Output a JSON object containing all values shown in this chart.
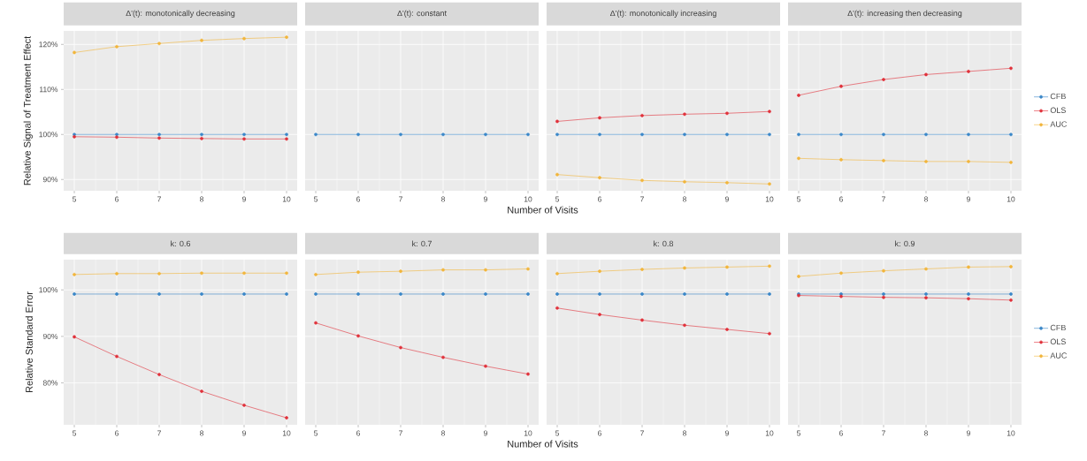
{
  "chart_data": [
    {
      "type": "line",
      "title": "Δ'(t): monotonically decreasing",
      "ylabel": "Relative Signal of Treatment Effect",
      "x": [
        5,
        6,
        7,
        8,
        9,
        10
      ],
      "xlim": [
        4.75,
        10.25
      ],
      "xticks": [
        5,
        6,
        7,
        8,
        9,
        10
      ],
      "ylim": [
        87.5,
        123
      ],
      "yticks": [
        {
          "value": 90,
          "label": "90%"
        },
        {
          "value": 100,
          "label": "100%"
        },
        {
          "value": 110,
          "label": "110%"
        },
        {
          "value": 120,
          "label": "120%"
        }
      ],
      "grid": true,
      "marker": "circle",
      "series": [
        {
          "color": "#3a87c8",
          "values": [
            100,
            100,
            100,
            100,
            100,
            100
          ]
        },
        {
          "color": "#e0313a",
          "values": [
            99.5,
            99.4,
            99.2,
            99.1,
            99.0,
            99.0
          ]
        },
        {
          "color": "#f2b53b",
          "values": [
            118.2,
            119.5,
            120.2,
            120.9,
            121.3,
            121.6
          ]
        }
      ]
    },
    {
      "type": "line",
      "title": "Δ'(t): constant",
      "xlabel": "Number of Visits",
      "x": [
        5,
        6,
        7,
        8,
        9,
        10
      ],
      "xlim": [
        4.75,
        10.25
      ],
      "xticks": [
        5,
        6,
        7,
        8,
        9,
        10
      ],
      "ylim": [
        87.5,
        123
      ],
      "yticks": [
        {
          "value": 90,
          "label": null
        },
        {
          "value": 100,
          "label": null
        },
        {
          "value": 110,
          "label": null
        },
        {
          "value": 120,
          "label": null
        }
      ],
      "grid": true,
      "marker": "circle",
      "tick_labels": "x",
      "series": [
        {
          "color": "#3a87c8",
          "values": [
            100,
            100,
            100,
            100,
            100,
            100
          ]
        }
      ]
    },
    {
      "type": "line",
      "title": "Δ'(t): monotonically increasing",
      "x": [
        5,
        6,
        7,
        8,
        9,
        10
      ],
      "xlim": [
        4.75,
        10.25
      ],
      "xticks": [
        5,
        6,
        7,
        8,
        9,
        10
      ],
      "ylim": [
        87.5,
        123
      ],
      "yticks": [
        {
          "value": 90,
          "label": null
        },
        {
          "value": 100,
          "label": null
        },
        {
          "value": 110,
          "label": null
        },
        {
          "value": 120,
          "label": null
        }
      ],
      "grid": true,
      "marker": "circle",
      "tick_labels": "x",
      "series": [
        {
          "color": "#3a87c8",
          "values": [
            100,
            100,
            100,
            100,
            100,
            100
          ]
        },
        {
          "color": "#e0313a",
          "values": [
            102.9,
            103.7,
            104.2,
            104.5,
            104.7,
            105.1
          ]
        },
        {
          "color": "#f2b53b",
          "values": [
            91.1,
            90.4,
            89.8,
            89.5,
            89.3,
            89.0
          ]
        }
      ]
    },
    {
      "type": "line",
      "title": "Δ'(t): increasing then decreasing",
      "x": [
        5,
        6,
        7,
        8,
        9,
        10
      ],
      "xlim": [
        4.75,
        10.25
      ],
      "xticks": [
        5,
        6,
        7,
        8,
        9,
        10
      ],
      "ylim": [
        87.5,
        123
      ],
      "yticks": [
        {
          "value": 90,
          "label": null
        },
        {
          "value": 100,
          "label": null
        },
        {
          "value": 110,
          "label": null
        },
        {
          "value": 120,
          "label": null
        }
      ],
      "grid": true,
      "marker": "circle",
      "legend": "right",
      "tick_labels": "x",
      "series": [
        {
          "name": "CFB",
          "color": "#3a87c8",
          "values": [
            100,
            100,
            100,
            100,
            100,
            100
          ]
        },
        {
          "name": "OLS",
          "color": "#e0313a",
          "values": [
            108.7,
            110.7,
            112.2,
            113.3,
            114.0,
            114.7
          ]
        },
        {
          "name": "AUC",
          "color": "#f2b53b",
          "values": [
            94.7,
            94.4,
            94.2,
            94.0,
            94.0,
            93.8
          ]
        }
      ]
    },
    {
      "type": "line",
      "title": "k: 0.6",
      "ylabel": "Relative Standard Error",
      "x": [
        5,
        6,
        7,
        8,
        9,
        10
      ],
      "xlim": [
        4.75,
        10.25
      ],
      "xticks": [
        5,
        6,
        7,
        8,
        9,
        10
      ],
      "ylim": [
        71,
        106.5
      ],
      "yticks": [
        {
          "value": 80,
          "label": "80%"
        },
        {
          "value": 90,
          "label": "90%"
        },
        {
          "value": 100,
          "label": "100%"
        }
      ],
      "grid": true,
      "marker": "circle",
      "series": [
        {
          "color": "#3a87c8",
          "values": [
            99.1,
            99.1,
            99.1,
            99.1,
            99.1,
            99.1
          ]
        },
        {
          "color": "#e0313a",
          "values": [
            89.9,
            85.7,
            81.8,
            78.2,
            75.2,
            72.5
          ]
        },
        {
          "color": "#f2b53b",
          "values": [
            103.3,
            103.5,
            103.5,
            103.6,
            103.6,
            103.6
          ]
        }
      ]
    },
    {
      "type": "line",
      "title": "k: 0.7",
      "xlabel": "Number of Visits",
      "x": [
        5,
        6,
        7,
        8,
        9,
        10
      ],
      "xlim": [
        4.75,
        10.25
      ],
      "xticks": [
        5,
        6,
        7,
        8,
        9,
        10
      ],
      "ylim": [
        71,
        106.5
      ],
      "yticks": [
        {
          "value": 80,
          "label": null
        },
        {
          "value": 90,
          "label": null
        },
        {
          "value": 100,
          "label": null
        }
      ],
      "grid": true,
      "marker": "circle",
      "tick_labels": "x",
      "series": [
        {
          "color": "#3a87c8",
          "values": [
            99.1,
            99.1,
            99.1,
            99.1,
            99.1,
            99.1
          ]
        },
        {
          "color": "#e0313a",
          "values": [
            92.9,
            90.1,
            87.6,
            85.5,
            83.6,
            81.9
          ]
        },
        {
          "color": "#f2b53b",
          "values": [
            103.3,
            103.8,
            104.0,
            104.3,
            104.3,
            104.5
          ]
        }
      ]
    },
    {
      "type": "line",
      "title": "k: 0.8",
      "x": [
        5,
        6,
        7,
        8,
        9,
        10
      ],
      "xlim": [
        4.75,
        10.25
      ],
      "xticks": [
        5,
        6,
        7,
        8,
        9,
        10
      ],
      "ylim": [
        71,
        106.5
      ],
      "yticks": [
        {
          "value": 80,
          "label": null
        },
        {
          "value": 90,
          "label": null
        },
        {
          "value": 100,
          "label": null
        }
      ],
      "grid": true,
      "marker": "circle",
      "tick_labels": "x",
      "series": [
        {
          "color": "#3a87c8",
          "values": [
            99.1,
            99.1,
            99.1,
            99.1,
            99.1,
            99.1
          ]
        },
        {
          "color": "#e0313a",
          "values": [
            96.1,
            94.7,
            93.5,
            92.4,
            91.5,
            90.6
          ]
        },
        {
          "color": "#f2b53b",
          "values": [
            103.5,
            104.0,
            104.4,
            104.7,
            104.9,
            105.1
          ]
        }
      ]
    },
    {
      "type": "line",
      "title": "k: 0.9",
      "x": [
        5,
        6,
        7,
        8,
        9,
        10
      ],
      "xlim": [
        4.75,
        10.25
      ],
      "xticks": [
        5,
        6,
        7,
        8,
        9,
        10
      ],
      "ylim": [
        71,
        106.5
      ],
      "yticks": [
        {
          "value": 80,
          "label": null
        },
        {
          "value": 90,
          "label": null
        },
        {
          "value": 100,
          "label": null
        }
      ],
      "grid": true,
      "marker": "circle",
      "legend": "right",
      "tick_labels": "x",
      "series": [
        {
          "name": "CFB",
          "color": "#3a87c8",
          "values": [
            99.1,
            99.1,
            99.1,
            99.1,
            99.1,
            99.1
          ]
        },
        {
          "name": "OLS",
          "color": "#e0313a",
          "values": [
            98.8,
            98.6,
            98.4,
            98.3,
            98.1,
            97.8
          ]
        },
        {
          "name": "AUC",
          "color": "#f2b53b",
          "values": [
            102.9,
            103.6,
            104.1,
            104.5,
            104.9,
            105.0
          ]
        }
      ]
    }
  ]
}
